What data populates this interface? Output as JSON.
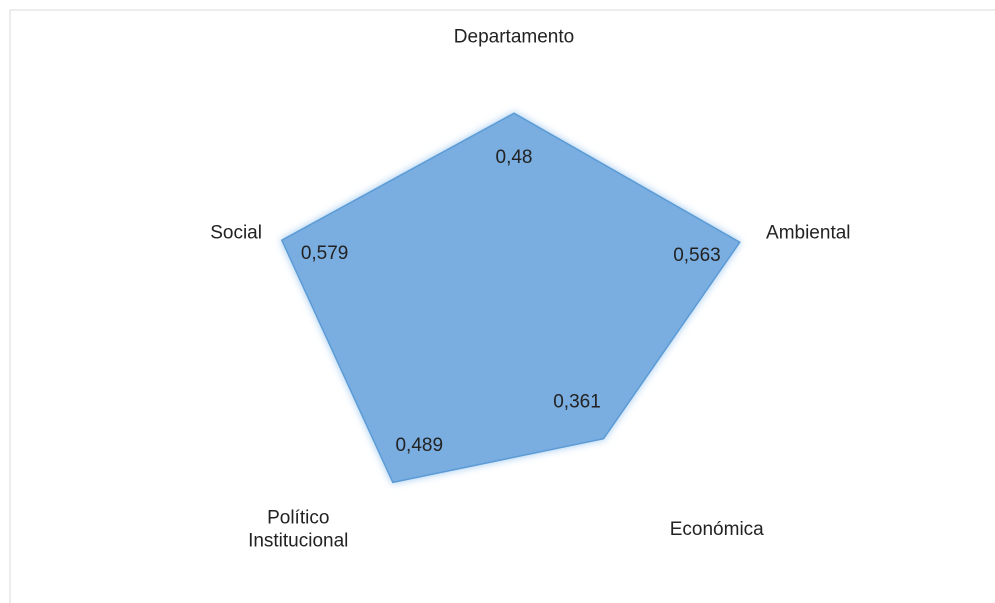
{
  "chart_data": {
    "type": "radar",
    "categories": [
      "Departamento",
      "Ambiental",
      "Económica",
      "Político Institucional",
      "Social"
    ],
    "values": [
      0.48,
      0.563,
      0.361,
      0.489,
      0.579
    ],
    "value_labels": [
      "0,48",
      "0,563",
      "0,361",
      "0,489",
      "0,579"
    ],
    "color": "#7aaee0",
    "rlim": [
      0,
      0.6
    ]
  }
}
